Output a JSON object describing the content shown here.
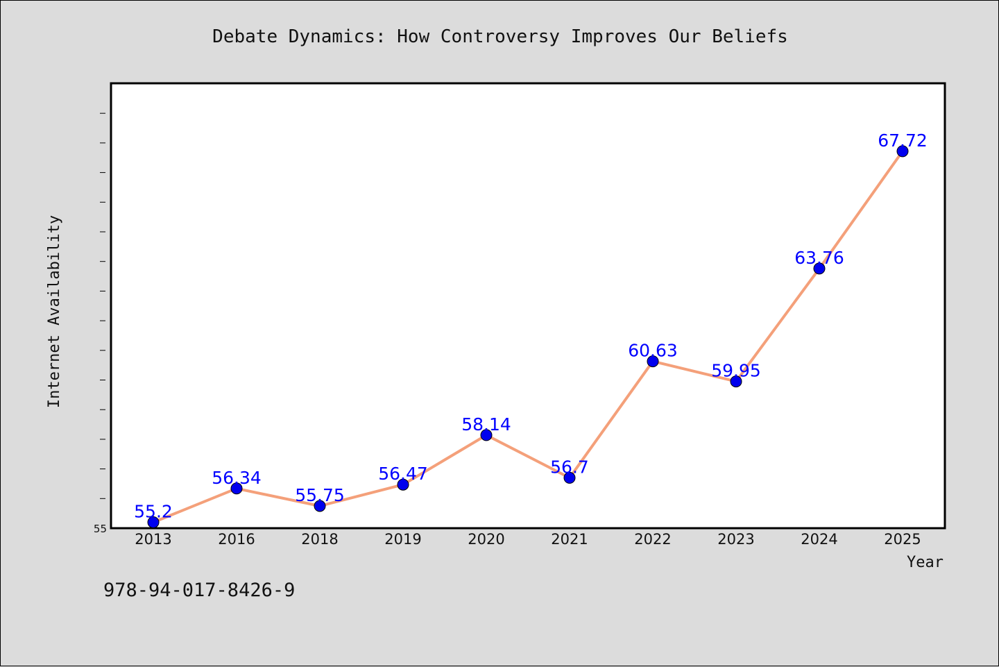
{
  "chart_data": {
    "type": "line",
    "title": "Debate Dynamics: How Controversy Improves Our Beliefs",
    "xlabel": "Year",
    "ylabel": "Internet Availability",
    "categories": [
      "2013",
      "2016",
      "2018",
      "2019",
      "2020",
      "2021",
      "2022",
      "2023",
      "2024",
      "2025"
    ],
    "series": [
      {
        "values": [
          55.2,
          56.34,
          55.75,
          56.47,
          58.14,
          56.7,
          60.63,
          59.95,
          63.76,
          67.72
        ],
        "data_labels": [
          "55.2",
          "56.34",
          "55.75",
          "56.47",
          "58.14",
          "56.7",
          "60.63",
          "59.95",
          "63.76",
          "67.72"
        ]
      }
    ],
    "ylim": [
      55,
      70
    ],
    "y_tick_labels": [
      "55"
    ],
    "grid": false,
    "legend": "none",
    "colors": {
      "line": "#f4a07a",
      "marker": "#0000ee",
      "data_label": "#0000ff",
      "plot_background": "#ffffff",
      "figure_background": "#dcdcdc"
    }
  },
  "footer": {
    "isbn": "978-94-017-8426-9"
  }
}
